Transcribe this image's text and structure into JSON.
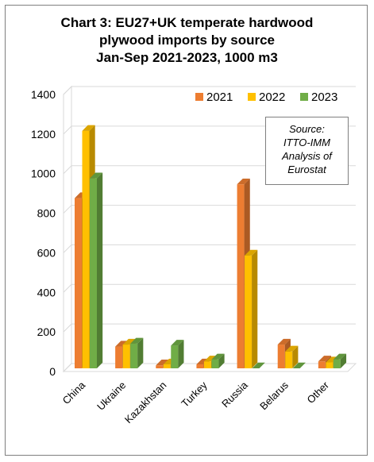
{
  "title": {
    "line1": "Chart 3: EU27+UK temperate hardwood",
    "line2": "plywood imports by source",
    "line3": "Jan-Sep 2021-2023, 1000 m3"
  },
  "source_note": {
    "line1": "Source:",
    "line2": "ITTO-IMM",
    "line3": "Analysis of",
    "line4": "Eurostat"
  },
  "chart_data": {
    "type": "bar",
    "style": "3d-clustered-column",
    "title": "Chart 3: EU27+UK temperate hardwood plywood imports by source Jan-Sep 2021-2023, 1000 m3",
    "categories": [
      "China",
      "Ukraine",
      "Kazakhstan",
      "Turkey",
      "Russia",
      "Belarus",
      "Other"
    ],
    "series": [
      {
        "name": "2021",
        "color": "#ED7D31",
        "values": [
          860,
          110,
          15,
          20,
          930,
          120,
          35
        ]
      },
      {
        "name": "2022",
        "color": "#FFC000",
        "values": [
          1200,
          120,
          20,
          35,
          570,
          85,
          30
        ]
      },
      {
        "name": "2023",
        "color": "#70AD47",
        "values": [
          960,
          125,
          115,
          45,
          0,
          0,
          45
        ]
      }
    ],
    "y_ticks": [
      0,
      200,
      400,
      600,
      800,
      1000,
      1200,
      1400
    ],
    "ylim": [
      0,
      1400
    ],
    "xlabel": "",
    "ylabel": "",
    "grid": true,
    "legend_position": "top-right"
  }
}
